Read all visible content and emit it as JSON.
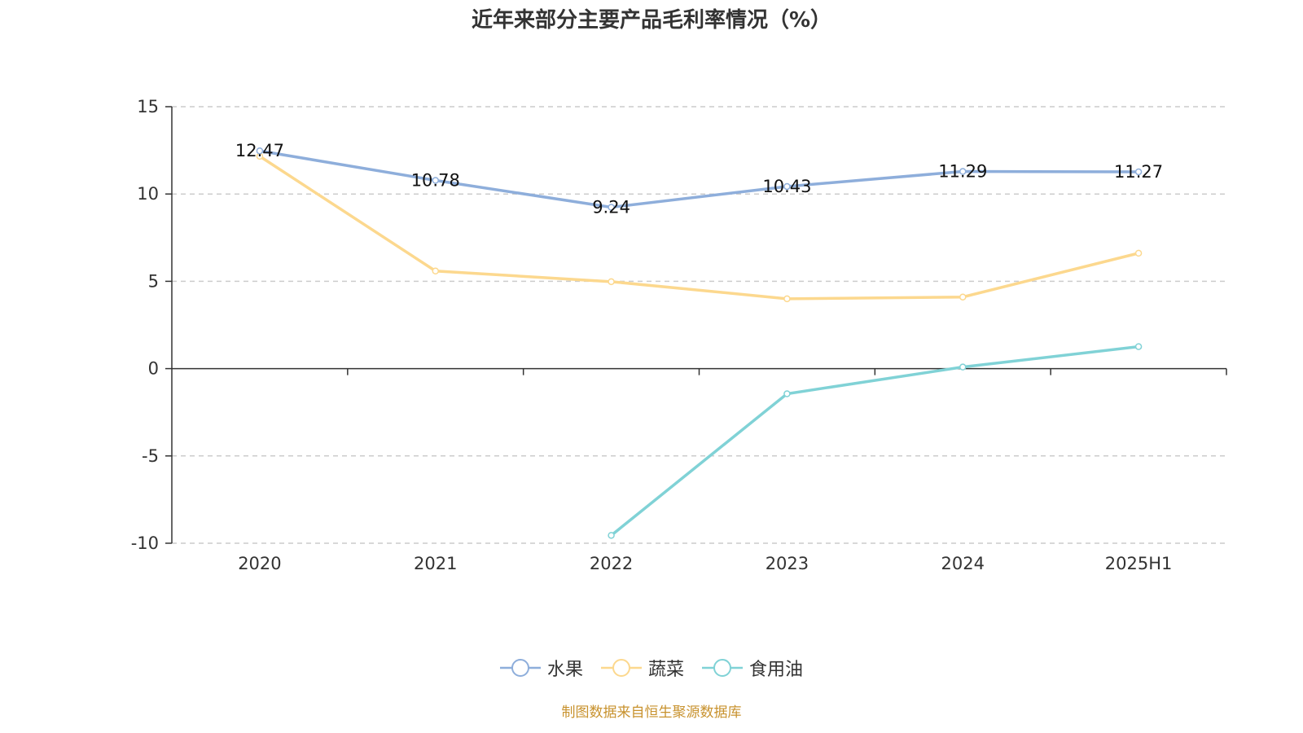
{
  "chart_data": {
    "type": "line",
    "title": "近年来部分主要产品毛利率情况（%）",
    "categories": [
      "2020",
      "2021",
      "2022",
      "2023",
      "2024",
      "2025H1"
    ],
    "ylim": [
      -10,
      15
    ],
    "yticks": [
      15,
      10,
      5,
      0,
      -5,
      -10
    ],
    "grid": true,
    "legend_position": "bottom",
    "series": [
      {
        "name": "水果",
        "color": "#8eaedb",
        "values": [
          12.47,
          10.78,
          9.24,
          10.43,
          11.29,
          11.27
        ],
        "show_labels": true
      },
      {
        "name": "蔬菜",
        "color": "#fcd88e",
        "values": [
          12.16,
          5.59,
          4.98,
          4.0,
          4.1,
          6.61
        ],
        "show_labels": false
      },
      {
        "name": "食用油",
        "color": "#80d2d6",
        "values": [
          null,
          null,
          -9.55,
          -1.44,
          0.09,
          1.26
        ],
        "show_labels": false
      }
    ]
  },
  "footer": "制图数据来自恒生聚源数据库"
}
